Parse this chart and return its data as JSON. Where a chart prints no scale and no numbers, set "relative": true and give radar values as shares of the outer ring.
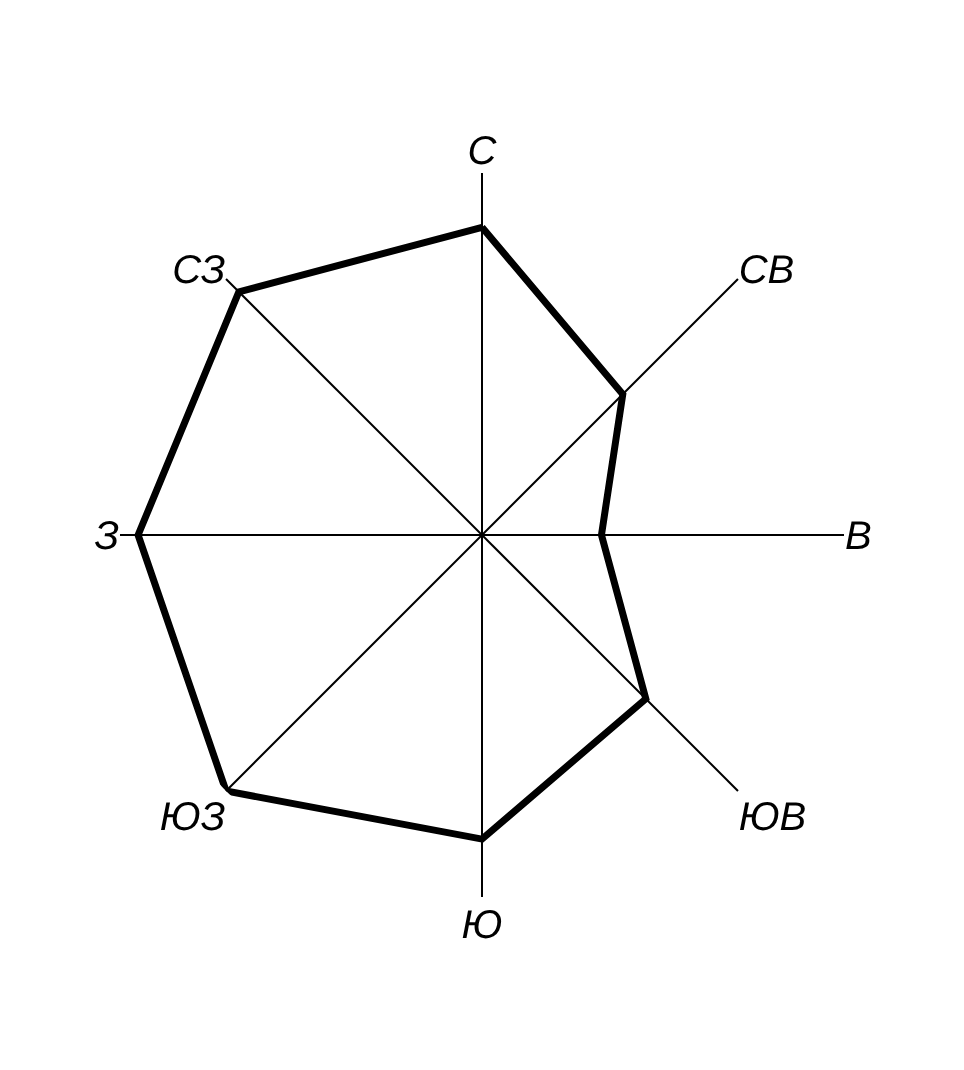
{
  "chart_data": {
    "type": "radar",
    "relative": true,
    "categories": [
      "С",
      "СВ",
      "В",
      "ЮВ",
      "Ю",
      "ЮЗ",
      "З",
      "СЗ"
    ],
    "series": [
      {
        "color": "#000000",
        "values": [
          0.85,
          0.55,
          0.33,
          0.64,
          0.84,
          1,
          0.95,
          0.95
        ]
      }
    ],
    "grid": "x",
    "marker": "none",
    "line_style": "solid"
  }
}
